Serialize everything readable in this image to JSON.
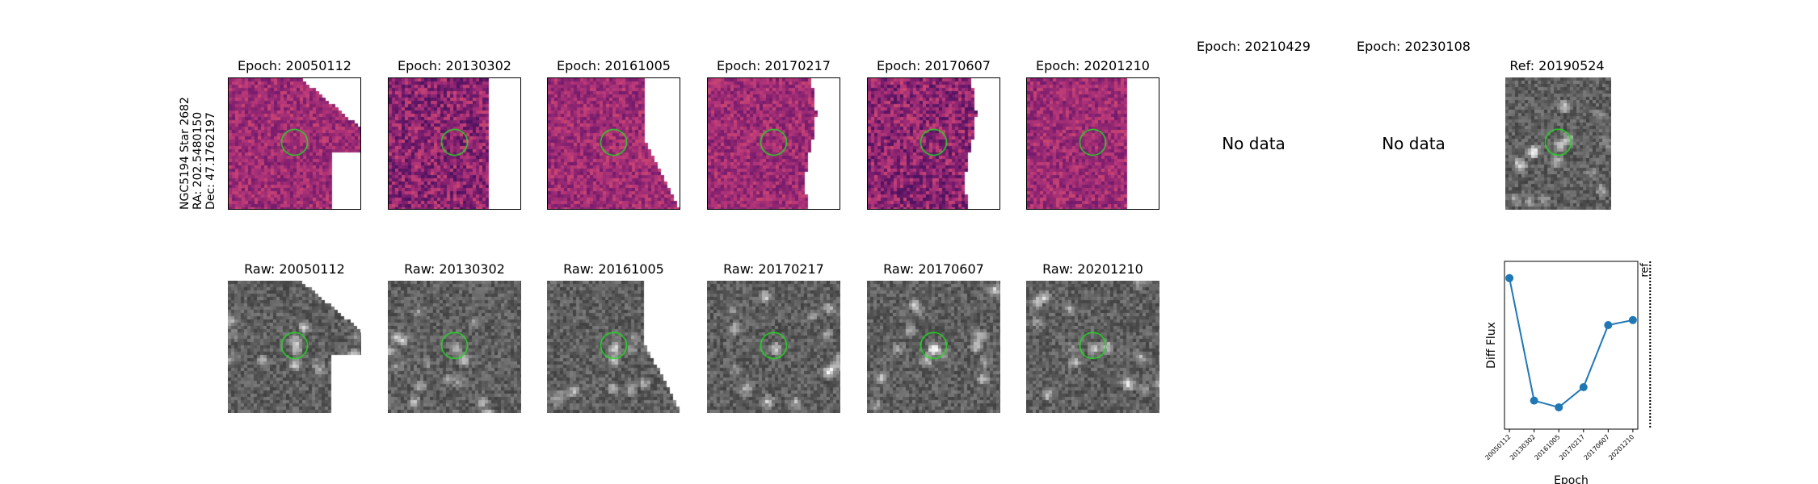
{
  "star_label": {
    "name": "NGC5194 Star 2682",
    "ra": "RA: 202.5480150",
    "dec": "Dec: 47.1762197"
  },
  "diff_panels": [
    {
      "title": "Epoch: 20050112",
      "mode": "data",
      "edge": "diag_top"
    },
    {
      "title": "Epoch: 20130302",
      "mode": "data",
      "edge": "right_straight"
    },
    {
      "title": "Epoch: 20161005",
      "mode": "data",
      "edge": "right_diag"
    },
    {
      "title": "Epoch: 20170217",
      "mode": "data",
      "edge": "right_wavy"
    },
    {
      "title": "Epoch: 20170607",
      "mode": "data",
      "edge": "right_wavy"
    },
    {
      "title": "Epoch: 20201210",
      "mode": "data",
      "edge": "right_straight"
    },
    {
      "title": "Epoch: 20210429",
      "mode": "nodata",
      "nodata_text": "No data"
    },
    {
      "title": "Epoch: 20230108",
      "mode": "nodata",
      "nodata_text": "No data"
    }
  ],
  "ref_panel": {
    "title": "Ref: 20190524"
  },
  "raw_panels": [
    {
      "title": "Raw: 20050112",
      "edge": "diag_top"
    },
    {
      "title": "Raw: 20130302",
      "edge": "none"
    },
    {
      "title": "Raw: 20161005",
      "edge": "right_diag"
    },
    {
      "title": "Raw: 20170217",
      "edge": "none"
    },
    {
      "title": "Raw: 20170607",
      "edge": "none"
    },
    {
      "title": "Raw: 20201210",
      "edge": "none"
    }
  ],
  "colors": {
    "aperture": "#22dd22",
    "line": "#1f77b4"
  },
  "chart_data": {
    "type": "line",
    "title": "",
    "xlabel": "Epoch",
    "ylabel": "Diff Flux",
    "categories": [
      "20050112",
      "20130302",
      "20161005",
      "20170217",
      "20170607",
      "20201210"
    ],
    "values": [
      0.9,
      0.17,
      0.13,
      0.25,
      0.62,
      0.65
    ],
    "ylim": [
      0.0,
      1.0
    ],
    "ref_marker": {
      "label": "ref",
      "position": 5.7,
      "style": "dotted"
    },
    "grid": false,
    "legend": "none"
  }
}
